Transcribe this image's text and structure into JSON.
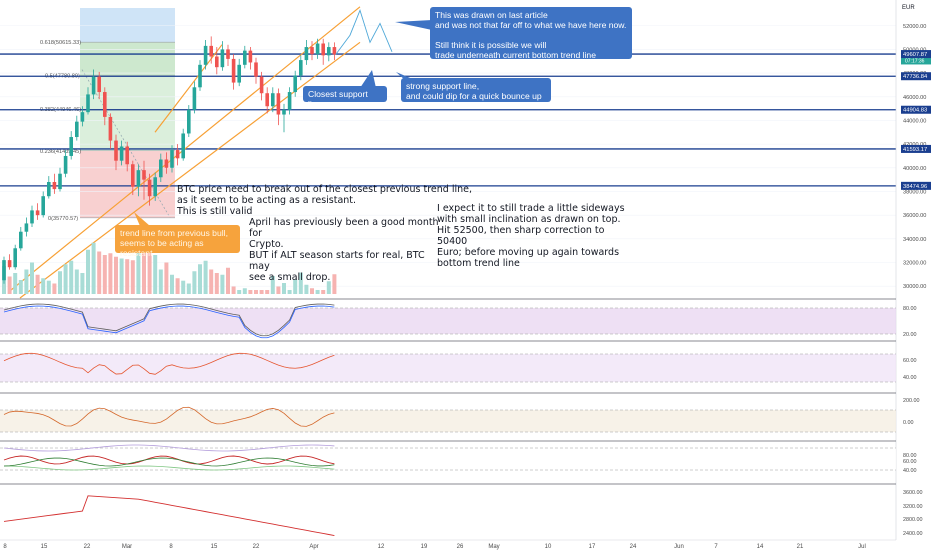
{
  "currency": "EUR",
  "colors": {
    "up": "#26a69a",
    "down": "#ef5350",
    "hline": "#1a3e8f",
    "trend": "#f7a035",
    "fib_green": "#c8e6c9",
    "fib_blue": "#cfe4f7",
    "fib_red": "#f8d0d0",
    "callout_blue": "#3e73c4",
    "callout_orange": "#f6a33d",
    "stoch_k": "#2962ff",
    "stoch_d": "#5c5c5c",
    "osc": "#e5552f"
  },
  "price_axis": {
    "ticks": [
      "52000.00",
      "50000.00",
      "48000.00",
      "46000.00",
      "44000.00",
      "42000.00",
      "40000.00",
      "38000.00",
      "36000.00",
      "34000.00",
      "32000.00",
      "30000.00"
    ],
    "badges": [
      {
        "label": "49575.48",
        "sub": "07:17:36",
        "value": 49575.48,
        "color": "#26a69a"
      },
      {
        "label": "49607.87",
        "value": 49607.87,
        "color": "#1a3e8f"
      },
      {
        "label": "47736.84",
        "value": 47736.84,
        "color": "#1a3e8f"
      },
      {
        "label": "44904.83",
        "value": 44904.83,
        "color": "#1a3e8f"
      },
      {
        "label": "41593.17",
        "value": 41593.17,
        "color": "#1a3e8f"
      },
      {
        "label": "38474.96",
        "value": 38474.96,
        "color": "#1a3e8f"
      }
    ]
  },
  "fib_labels": [
    "0.618(50615.33)",
    "0.5(47780.89)",
    "0.382(44946.46)",
    "0.236(41439.45)",
    "0(35770.57)"
  ],
  "x_axis": {
    "labels": [
      "8",
      "15",
      "22",
      "Mar",
      "8",
      "15",
      "22",
      "Apr",
      "12",
      "19",
      "26",
      "May",
      "10",
      "17",
      "24",
      "Jun",
      "7",
      "14",
      "21",
      "Jul"
    ]
  },
  "annotations": {
    "top_callout": "This was drawn on last article\nand was not that far off to what we have here now.\n\nStill think it is possible we will\ntrade underneath current bottom trend line\nuntil a strong move or news.",
    "closest_support": "Closest support line.",
    "strong_support": "strong support line,\nand could dip for a quick bounce up",
    "trend_line_note": "trend line from previous bull,\nseems to be acting as resistant",
    "btc_note": "BTC price need to break out of the closest previous trend line,\nas it seem to be acting as a resistant.\nThis is still valid",
    "april_note": "April has previously been a good month for\nCrypto.\nBUT if ALT season starts for real, BTC may\nsee a small drop.",
    "expect_note": "I expect it to still trade a little sideways\nwith small inclination as drawn on top.\nHit 52500, then sharp correction to 50400\nEuro; before moving up again towards\nbottom trend line"
  },
  "panels": [
    {
      "name": "stochastic",
      "ticks": [
        "80.00",
        "20.00"
      ]
    },
    {
      "name": "rsi",
      "ticks": [
        "60.00",
        "40.00"
      ]
    },
    {
      "name": "cci",
      "ticks": [
        "200.00",
        "0.00"
      ]
    },
    {
      "name": "multi",
      "ticks": [
        "80.00",
        "60.00",
        "40.00"
      ]
    },
    {
      "name": "atr",
      "ticks": [
        "3600.00",
        "3200.00",
        "2800.00",
        "2400.00"
      ]
    }
  ],
  "chart_data": {
    "type": "candlestick",
    "currency": "EUR",
    "ylim": [
      29000,
      53500
    ],
    "hlines": [
      49607.87,
      47736.84,
      44904.83,
      41593.17,
      38474.96
    ],
    "candles": [
      [
        30500,
        32200,
        30200,
        32500
      ],
      [
        32200,
        31600,
        31400,
        32700
      ],
      [
        31600,
        33200,
        31400,
        33500
      ],
      [
        33200,
        34600,
        33000,
        35000
      ],
      [
        34600,
        35300,
        34200,
        35800
      ],
      [
        35300,
        36400,
        35000,
        36800
      ],
      [
        36400,
        36000,
        35600,
        37000
      ],
      [
        36000,
        37600,
        35800,
        38000
      ],
      [
        37600,
        38800,
        37400,
        39300
      ],
      [
        38800,
        38200,
        37800,
        39500
      ],
      [
        38200,
        39500,
        38000,
        40000
      ],
      [
        39500,
        41000,
        39200,
        41500
      ],
      [
        41000,
        42600,
        40700,
        43100
      ],
      [
        42600,
        43900,
        42300,
        44400
      ],
      [
        43900,
        44700,
        43500,
        45200
      ],
      [
        44700,
        46200,
        44500,
        46800
      ],
      [
        46200,
        47700,
        45800,
        48300
      ],
      [
        47700,
        46400,
        45800,
        48100
      ],
      [
        46400,
        44300,
        43600,
        46800
      ],
      [
        44300,
        42300,
        41600,
        44600
      ],
      [
        42300,
        40600,
        39800,
        42800
      ],
      [
        40600,
        41800,
        40200,
        42300
      ],
      [
        41800,
        40300,
        39700,
        42200
      ],
      [
        40300,
        38400,
        37700,
        40600
      ],
      [
        38400,
        39800,
        37600,
        40300
      ],
      [
        39800,
        39000,
        37300,
        40600
      ],
      [
        39000,
        37600,
        36800,
        39500
      ],
      [
        37600,
        39200,
        37200,
        39600
      ],
      [
        39200,
        40700,
        38800,
        41200
      ],
      [
        40700,
        40000,
        39500,
        41300
      ],
      [
        40000,
        41500,
        39600,
        41900
      ],
      [
        41500,
        40800,
        40200,
        42000
      ],
      [
        40800,
        42900,
        40600,
        43300
      ],
      [
        42900,
        44900,
        42600,
        45300
      ],
      [
        44900,
        46800,
        44600,
        47300
      ],
      [
        46800,
        48700,
        46500,
        49100
      ],
      [
        48700,
        50300,
        48300,
        50800
      ],
      [
        50300,
        49400,
        48800,
        51100
      ],
      [
        49400,
        48500,
        47900,
        50200
      ],
      [
        48500,
        50000,
        48200,
        50700
      ],
      [
        50000,
        49200,
        48600,
        50400
      ],
      [
        49200,
        47200,
        46600,
        49600
      ],
      [
        47200,
        48700,
        46900,
        49200
      ],
      [
        48700,
        49900,
        48400,
        50300
      ],
      [
        49900,
        48900,
        48300,
        50200
      ],
      [
        48900,
        47700,
        47100,
        49300
      ],
      [
        47700,
        46300,
        45700,
        48100
      ],
      [
        46300,
        45200,
        44600,
        46800
      ],
      [
        45200,
        46300,
        44700,
        46800
      ],
      [
        46300,
        44500,
        43600,
        46700
      ],
      [
        44500,
        44900,
        43000,
        45400
      ],
      [
        44900,
        46400,
        44500,
        46800
      ],
      [
        46400,
        47800,
        46000,
        48200
      ],
      [
        47800,
        49100,
        47400,
        49500
      ],
      [
        49100,
        50200,
        48700,
        50800
      ],
      [
        50200,
        49600,
        49100,
        50700
      ],
      [
        49600,
        50500,
        49200,
        50900
      ],
      [
        50500,
        49500,
        48700,
        50900
      ],
      [
        49500,
        50200,
        49000,
        50600
      ],
      [
        50200,
        49575,
        49100,
        50600
      ]
    ]
  }
}
